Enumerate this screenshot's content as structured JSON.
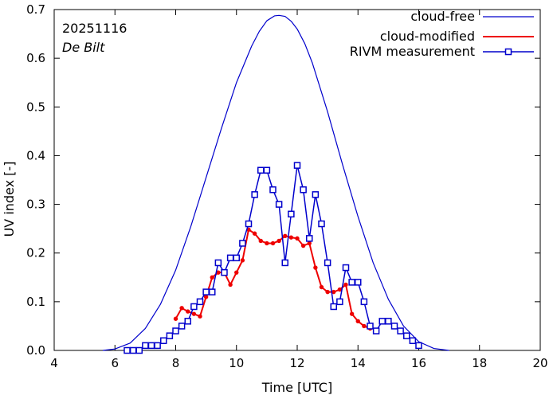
{
  "chart_data": {
    "type": "line",
    "title": "",
    "xlabel": "Time  [UTC]",
    "ylabel": "UV index  [-]",
    "xlim": [
      4,
      20
    ],
    "ylim": [
      0,
      0.7
    ],
    "xticks": [
      4,
      6,
      8,
      10,
      12,
      14,
      16,
      18,
      20
    ],
    "yticks": [
      0.0,
      0.1,
      0.2,
      0.3,
      0.4,
      0.5,
      0.6,
      0.7
    ],
    "legend_position": "top-right",
    "annotations": [
      {
        "text": "20251116",
        "style": "normal"
      },
      {
        "text": "De Bilt",
        "style": "italic"
      }
    ],
    "series": [
      {
        "name": "cloud-free",
        "color": "#0000cc",
        "marker": "none",
        "x": [
          5.6,
          6.0,
          6.5,
          7.0,
          7.5,
          8.0,
          8.5,
          9.0,
          9.5,
          10.0,
          10.5,
          10.75,
          11.0,
          11.25,
          11.4,
          11.6,
          11.8,
          12.0,
          12.25,
          12.5,
          13.0,
          13.5,
          14.0,
          14.5,
          15.0,
          15.5,
          16.0,
          16.5,
          17.0
        ],
        "values": [
          0.0,
          0.003,
          0.015,
          0.045,
          0.095,
          0.165,
          0.255,
          0.355,
          0.455,
          0.55,
          0.625,
          0.655,
          0.677,
          0.687,
          0.688,
          0.686,
          0.676,
          0.66,
          0.63,
          0.59,
          0.49,
          0.38,
          0.275,
          0.18,
          0.105,
          0.05,
          0.018,
          0.004,
          0.0
        ]
      },
      {
        "name": "cloud-modified",
        "color": "#ee0000",
        "marker": "dot",
        "x": [
          8.0,
          8.2,
          8.4,
          8.6,
          8.8,
          9.0,
          9.2,
          9.4,
          9.6,
          9.8,
          10.0,
          10.2,
          10.4,
          10.6,
          10.8,
          11.0,
          11.2,
          11.4,
          11.6,
          11.8,
          12.0,
          12.2,
          12.4,
          12.6,
          12.8,
          13.0,
          13.2,
          13.4,
          13.6,
          13.8,
          14.0,
          14.2,
          14.4
        ],
        "values": [
          0.065,
          0.087,
          0.08,
          0.075,
          0.07,
          0.11,
          0.15,
          0.16,
          0.16,
          0.135,
          0.16,
          0.185,
          0.248,
          0.24,
          0.225,
          0.22,
          0.22,
          0.225,
          0.235,
          0.232,
          0.23,
          0.215,
          0.22,
          0.17,
          0.13,
          0.12,
          0.12,
          0.125,
          0.135,
          0.075,
          0.06,
          0.05,
          0.045
        ]
      },
      {
        "name": "RIVM measurement",
        "color": "#0000cc",
        "marker": "square",
        "x": [
          6.4,
          6.6,
          6.8,
          7.0,
          7.2,
          7.4,
          7.6,
          7.8,
          8.0,
          8.2,
          8.4,
          8.6,
          8.8,
          9.0,
          9.2,
          9.4,
          9.6,
          9.8,
          10.0,
          10.2,
          10.4,
          10.6,
          10.8,
          11.0,
          11.2,
          11.4,
          11.6,
          11.8,
          12.0,
          12.2,
          12.4,
          12.6,
          12.8,
          13.0,
          13.2,
          13.4,
          13.6,
          13.8,
          14.0,
          14.2,
          14.4,
          14.6,
          14.8,
          15.0,
          15.2,
          15.4,
          15.6,
          15.8,
          16.0
        ],
        "values": [
          0.0,
          0.0,
          0.0,
          0.01,
          0.01,
          0.01,
          0.02,
          0.03,
          0.04,
          0.05,
          0.06,
          0.09,
          0.1,
          0.12,
          0.12,
          0.18,
          0.16,
          0.19,
          0.19,
          0.22,
          0.26,
          0.32,
          0.37,
          0.37,
          0.33,
          0.3,
          0.18,
          0.28,
          0.38,
          0.33,
          0.23,
          0.32,
          0.26,
          0.18,
          0.09,
          0.1,
          0.17,
          0.14,
          0.14,
          0.1,
          0.05,
          0.04,
          0.06,
          0.06,
          0.05,
          0.04,
          0.03,
          0.02,
          0.01
        ]
      }
    ]
  }
}
